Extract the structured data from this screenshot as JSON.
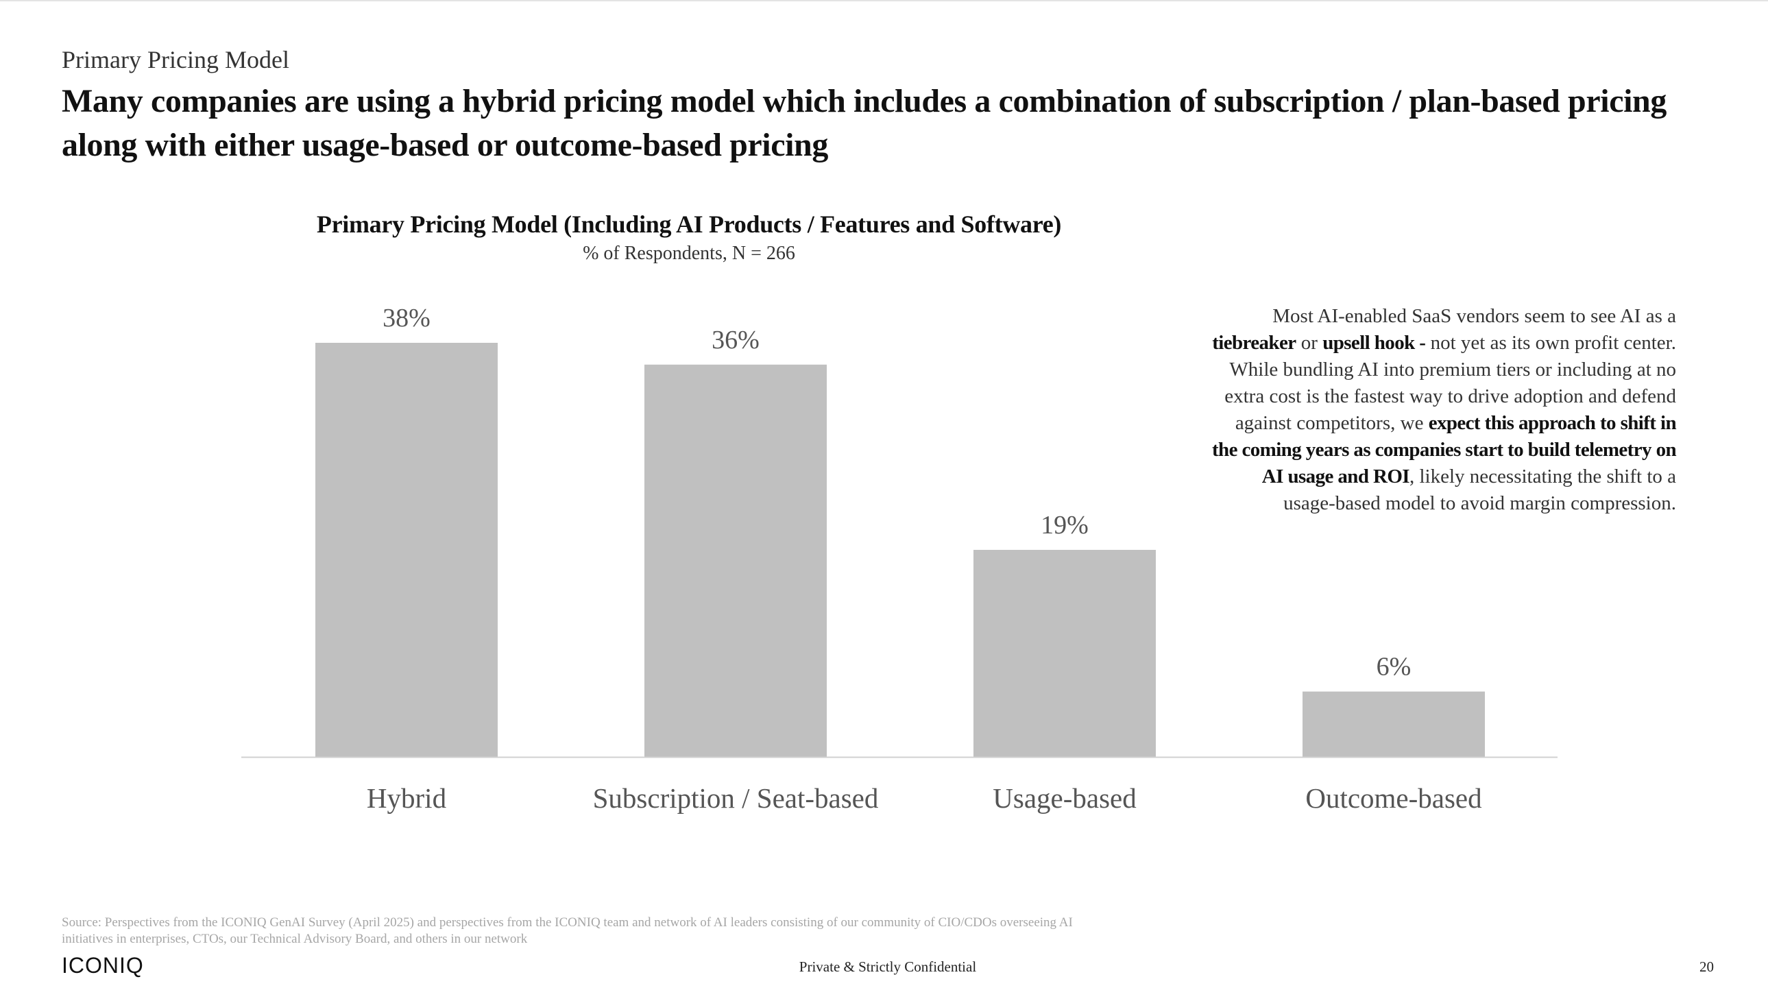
{
  "slide": {
    "section_label": "Primary Pricing Model",
    "headline": "Many companies are using a hybrid pricing model which includes a combination of subscription / plan-based pricing along with either usage-based or outcome-based pricing"
  },
  "chart_data": {
    "type": "bar",
    "title": "Primary Pricing Model (Including AI Products / Features and Software)",
    "subtitle": "% of Respondents, N = 266",
    "categories": [
      "Hybrid",
      "Subscription / Seat-based",
      "Usage-based",
      "Outcome-based"
    ],
    "values": [
      38,
      36,
      19,
      6
    ],
    "value_labels": [
      "38%",
      "36%",
      "19%",
      "6%"
    ],
    "unit": "%",
    "xlabel": "",
    "ylabel": "",
    "ylim": [
      0,
      38
    ],
    "grid": false,
    "legend": "none",
    "bar_color": "#c0c0c0",
    "baseline_color": "#d0d0d0"
  },
  "callout": {
    "t1": "Most AI-enabled SaaS vendors seem to see AI as a ",
    "b1": "tiebreaker",
    "t2": " or ",
    "b2": "upsell hook -",
    "t3": " not yet as its own profit center. While bundling AI into premium tiers or including at no extra cost is the fastest way to drive adoption and defend against competitors, we ",
    "b3": "expect this approach to shift in the coming years as companies start to build telemetry on AI usage and ROI",
    "t4": ", likely necessitating the shift to a usage-based model to avoid margin compression."
  },
  "footer": {
    "source": "Source: Perspectives from the ICONIQ GenAI Survey (April 2025) and perspectives from the ICONIQ team and network of AI leaders consisting of our community of CIO/CDOs overseeing AI initiatives in enterprises, CTOs, our Technical Advisory Board, and others in our network",
    "logo": "ICONIQ",
    "confidential": "Private & Strictly Confidential",
    "page_number": "20"
  }
}
